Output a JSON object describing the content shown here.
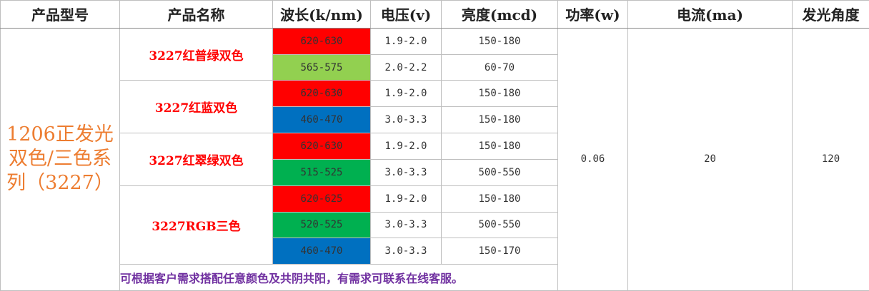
{
  "table": {
    "headers": [
      "产品型号",
      "产品名称",
      "波长(k/nm)",
      "电压(v)",
      "亮度(mcd)",
      "功率(w)",
      "电流(ma)",
      "发光角度"
    ],
    "model": "1206正发光双色/三色系列（3227）",
    "power": "0.06",
    "current": "20",
    "angle": "120",
    "groups": [
      {
        "name": "3227红普绿双色",
        "rows": [
          {
            "wavelength": "620-630",
            "color": "#ff0000",
            "voltage": "1.9-2.0",
            "brightness": "150-180"
          },
          {
            "wavelength": "565-575",
            "color": "#92d050",
            "voltage": "2.0-2.2",
            "brightness": "60-70"
          }
        ]
      },
      {
        "name": "3227红蓝双色",
        "rows": [
          {
            "wavelength": "620-630",
            "color": "#ff0000",
            "voltage": "1.9-2.0",
            "brightness": "150-180"
          },
          {
            "wavelength": "460-470",
            "color": "#0070c0",
            "voltage": "3.0-3.3",
            "brightness": "150-180"
          }
        ]
      },
      {
        "name": "3227红翠绿双色",
        "rows": [
          {
            "wavelength": "620-630",
            "color": "#ff0000",
            "voltage": "1.9-2.0",
            "brightness": "150-180"
          },
          {
            "wavelength": "515-525",
            "color": "#00b050",
            "voltage": "3.0-3.3",
            "brightness": "500-550"
          }
        ]
      },
      {
        "name": "3227RGB三色",
        "rows": [
          {
            "wavelength": "620-625",
            "color": "#ff0000",
            "voltage": "1.9-2.0",
            "brightness": "150-180"
          },
          {
            "wavelength": "520-525",
            "color": "#00b050",
            "voltage": "3.0-3.3",
            "brightness": "500-550"
          },
          {
            "wavelength": "460-470",
            "color": "#0070c0",
            "voltage": "3.0-3.3",
            "brightness": "150-170"
          }
        ]
      }
    ],
    "note": "可根据客户需求搭配任意颜色及共阴共阳，有需求可联系在线客服。"
  }
}
